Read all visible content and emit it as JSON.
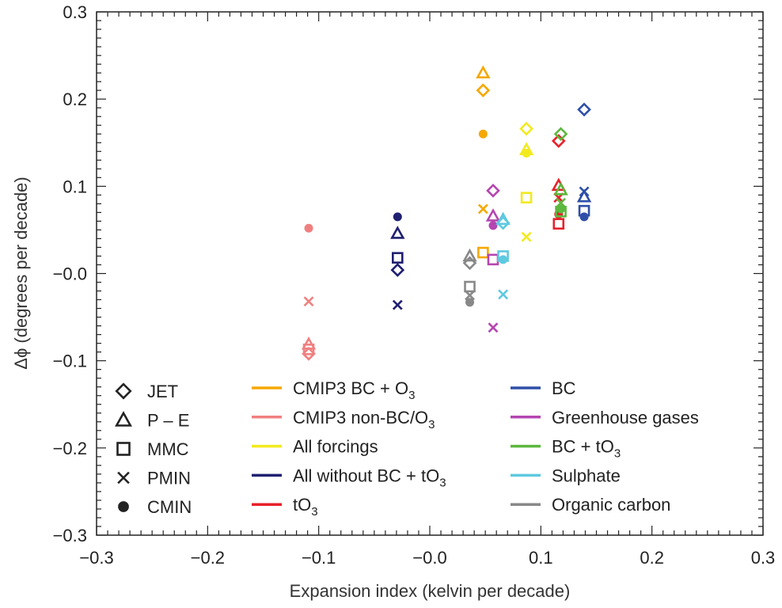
{
  "chart_data": {
    "type": "scatter",
    "xlabel": "Expansion index (kelvin per decade)",
    "ylabel": "Δϕ (degrees per decade)",
    "xlim": [
      -0.3,
      0.3
    ],
    "ylim": [
      -0.3,
      0.3
    ],
    "x_ticks": [
      {
        "v": -0.3,
        "label": "−0.3"
      },
      {
        "v": -0.2,
        "label": "−0.2"
      },
      {
        "v": -0.1,
        "label": "−0.1"
      },
      {
        "v": 0.0,
        "label": "−0.0"
      },
      {
        "v": 0.1,
        "label": "0.1"
      },
      {
        "v": 0.2,
        "label": "0.2"
      },
      {
        "v": 0.3,
        "label": "0.3"
      }
    ],
    "y_ticks": [
      {
        "v": -0.3,
        "label": "−0.3"
      },
      {
        "v": -0.2,
        "label": "−0.2"
      },
      {
        "v": -0.1,
        "label": "−0.1"
      },
      {
        "v": 0.0,
        "label": "−0.0"
      },
      {
        "v": 0.1,
        "label": "0.1"
      },
      {
        "v": 0.2,
        "label": "0.2"
      },
      {
        "v": 0.3,
        "label": "0.3"
      }
    ],
    "markers": [
      {
        "label": "JET",
        "shape": "diamond"
      },
      {
        "label": "P – E",
        "shape": "triangle"
      },
      {
        "label": "MMC",
        "shape": "square"
      },
      {
        "label": "PMIN",
        "shape": "cross"
      },
      {
        "label": "CMIN",
        "shape": "circle"
      }
    ],
    "series": [
      {
        "name": "CMIP3 BC + O",
        "sub": "3",
        "color": "#f5a800",
        "points": [
          {
            "m": "JET",
            "x": 0.048,
            "y": 0.21
          },
          {
            "m": "P – E",
            "x": 0.048,
            "y": 0.23
          },
          {
            "m": "MMC",
            "x": 0.048,
            "y": 0.024
          },
          {
            "m": "PMIN",
            "x": 0.048,
            "y": 0.074
          },
          {
            "m": "CMIN",
            "x": 0.048,
            "y": 0.16
          }
        ]
      },
      {
        "name": "CMIP3 non-BC/O",
        "sub": "3",
        "color": "#f08080",
        "points": [
          {
            "m": "JET",
            "x": -0.109,
            "y": -0.092
          },
          {
            "m": "P – E",
            "x": -0.109,
            "y": -0.081
          },
          {
            "m": "MMC",
            "x": -0.109,
            "y": -0.087
          },
          {
            "m": "PMIN",
            "x": -0.109,
            "y": -0.032
          },
          {
            "m": "CMIN",
            "x": -0.109,
            "y": 0.052
          }
        ]
      },
      {
        "name": "All forcings",
        "sub": "",
        "color": "#f2ea1f",
        "points": [
          {
            "m": "JET",
            "x": 0.087,
            "y": 0.166
          },
          {
            "m": "P – E",
            "x": 0.087,
            "y": 0.142
          },
          {
            "m": "MMC",
            "x": 0.087,
            "y": 0.087
          },
          {
            "m": "PMIN",
            "x": 0.087,
            "y": 0.042
          },
          {
            "m": "CMIN",
            "x": 0.087,
            "y": 0.138
          }
        ]
      },
      {
        "name": "All without BC + tO",
        "sub": "3",
        "color": "#1f2070",
        "points": [
          {
            "m": "JET",
            "x": -0.029,
            "y": 0.004
          },
          {
            "m": "P – E",
            "x": -0.029,
            "y": 0.046
          },
          {
            "m": "MMC",
            "x": -0.029,
            "y": 0.018
          },
          {
            "m": "PMIN",
            "x": -0.029,
            "y": -0.036
          },
          {
            "m": "CMIN",
            "x": -0.029,
            "y": 0.065
          }
        ]
      },
      {
        "name": "tO",
        "sub": "3",
        "color": "#e8202a",
        "points": [
          {
            "m": "JET",
            "x": 0.116,
            "y": 0.152
          },
          {
            "m": "P – E",
            "x": 0.116,
            "y": 0.101
          },
          {
            "m": "MMC",
            "x": 0.116,
            "y": 0.057
          },
          {
            "m": "PMIN",
            "x": 0.116,
            "y": 0.087
          },
          {
            "m": "CMIN",
            "x": 0.116,
            "y": 0.068
          }
        ]
      },
      {
        "name": "BC",
        "sub": "",
        "color": "#2e4fa8",
        "points": [
          {
            "m": "JET",
            "x": 0.139,
            "y": 0.188
          },
          {
            "m": "P – E",
            "x": 0.139,
            "y": 0.088
          },
          {
            "m": "MMC",
            "x": 0.139,
            "y": 0.072
          },
          {
            "m": "PMIN",
            "x": 0.139,
            "y": 0.094
          },
          {
            "m": "CMIN",
            "x": 0.139,
            "y": 0.065
          }
        ]
      },
      {
        "name": "Greenhouse gases",
        "sub": "",
        "color": "#b545b0",
        "points": [
          {
            "m": "JET",
            "x": 0.057,
            "y": 0.095
          },
          {
            "m": "P – E",
            "x": 0.057,
            "y": 0.066
          },
          {
            "m": "MMC",
            "x": 0.057,
            "y": 0.016
          },
          {
            "m": "PMIN",
            "x": 0.057,
            "y": -0.062
          },
          {
            "m": "CMIN",
            "x": 0.057,
            "y": 0.055
          }
        ]
      },
      {
        "name": "BC + tO",
        "sub": "3",
        "color": "#5cb83e",
        "points": [
          {
            "m": "JET",
            "x": 0.118,
            "y": 0.16
          },
          {
            "m": "P – E",
            "x": 0.118,
            "y": 0.096
          },
          {
            "m": "MMC",
            "x": 0.118,
            "y": 0.071
          },
          {
            "m": "PMIN",
            "x": 0.118,
            "y": 0.081
          },
          {
            "m": "CMIN",
            "x": 0.118,
            "y": 0.074
          }
        ]
      },
      {
        "name": "Sulphate",
        "sub": "",
        "color": "#5ec9e0",
        "points": [
          {
            "m": "JET",
            "x": 0.066,
            "y": 0.058
          },
          {
            "m": "P – E",
            "x": 0.066,
            "y": 0.062
          },
          {
            "m": "MMC",
            "x": 0.066,
            "y": 0.02
          },
          {
            "m": "PMIN",
            "x": 0.066,
            "y": -0.024
          },
          {
            "m": "CMIN",
            "x": 0.066,
            "y": 0.016
          }
        ]
      },
      {
        "name": "Organic carbon",
        "sub": "",
        "color": "#888888",
        "points": [
          {
            "m": "JET",
            "x": 0.036,
            "y": 0.012
          },
          {
            "m": "P – E",
            "x": 0.036,
            "y": 0.02
          },
          {
            "m": "MMC",
            "x": 0.036,
            "y": -0.015
          },
          {
            "m": "PMIN",
            "x": 0.036,
            "y": -0.025
          },
          {
            "m": "CMIN",
            "x": 0.036,
            "y": -0.033
          }
        ]
      }
    ]
  }
}
